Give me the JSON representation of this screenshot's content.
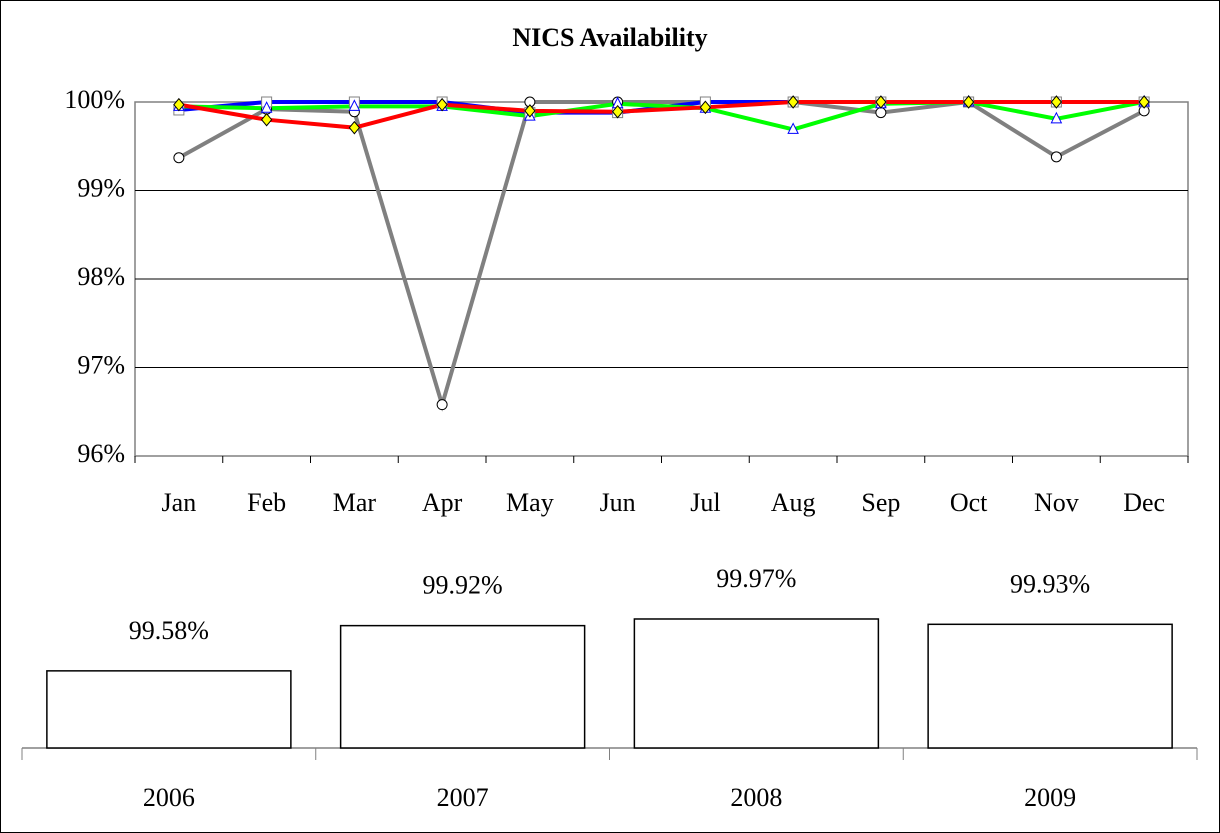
{
  "chart_data": [
    {
      "type": "line",
      "title": "NICS Availability",
      "categories": [
        "Jan",
        "Feb",
        "Mar",
        "Apr",
        "May",
        "Jun",
        "Jul",
        "Aug",
        "Sep",
        "Oct",
        "Nov",
        "Dec"
      ],
      "ylim": [
        96,
        100
      ],
      "yticks": [
        {
          "value": 96,
          "label": "96%"
        },
        {
          "value": 97,
          "label": "97%"
        },
        {
          "value": 98,
          "label": "98%"
        },
        {
          "value": 99,
          "label": "99%"
        },
        {
          "value": 100,
          "label": "100%"
        }
      ],
      "grid": true,
      "series": [
        {
          "color": "#808080",
          "marker": "circle",
          "values": [
            99.37,
            99.92,
            99.89,
            96.58,
            100,
            100,
            100,
            100,
            99.88,
            100,
            99.38,
            99.9
          ]
        },
        {
          "color": "#0000ff",
          "marker": "square",
          "values": [
            99.91,
            100,
            100,
            100,
            99.88,
            99.88,
            100,
            100,
            100,
            100,
            100,
            100
          ]
        },
        {
          "color": "#00ff00",
          "marker": "triangle",
          "values": [
            99.95,
            99.93,
            99.95,
            99.95,
            99.84,
            99.98,
            99.93,
            99.69,
            99.98,
            100,
            99.81,
            100
          ]
        },
        {
          "color": "#ff0000",
          "marker": "diamond",
          "values": [
            99.97,
            99.8,
            99.71,
            99.97,
            99.9,
            99.89,
            99.94,
            100,
            100,
            100,
            100,
            100
          ]
        }
      ]
    },
    {
      "type": "bar",
      "categories": [
        "2006",
        "2007",
        "2008",
        "2009"
      ],
      "values": [
        99.58,
        99.92,
        99.97,
        99.93
      ],
      "value_labels": [
        "99.58%",
        "99.92%",
        "99.97%",
        "99.93%"
      ],
      "ylim": [
        99,
        100
      ],
      "color": "#ffffff"
    }
  ]
}
